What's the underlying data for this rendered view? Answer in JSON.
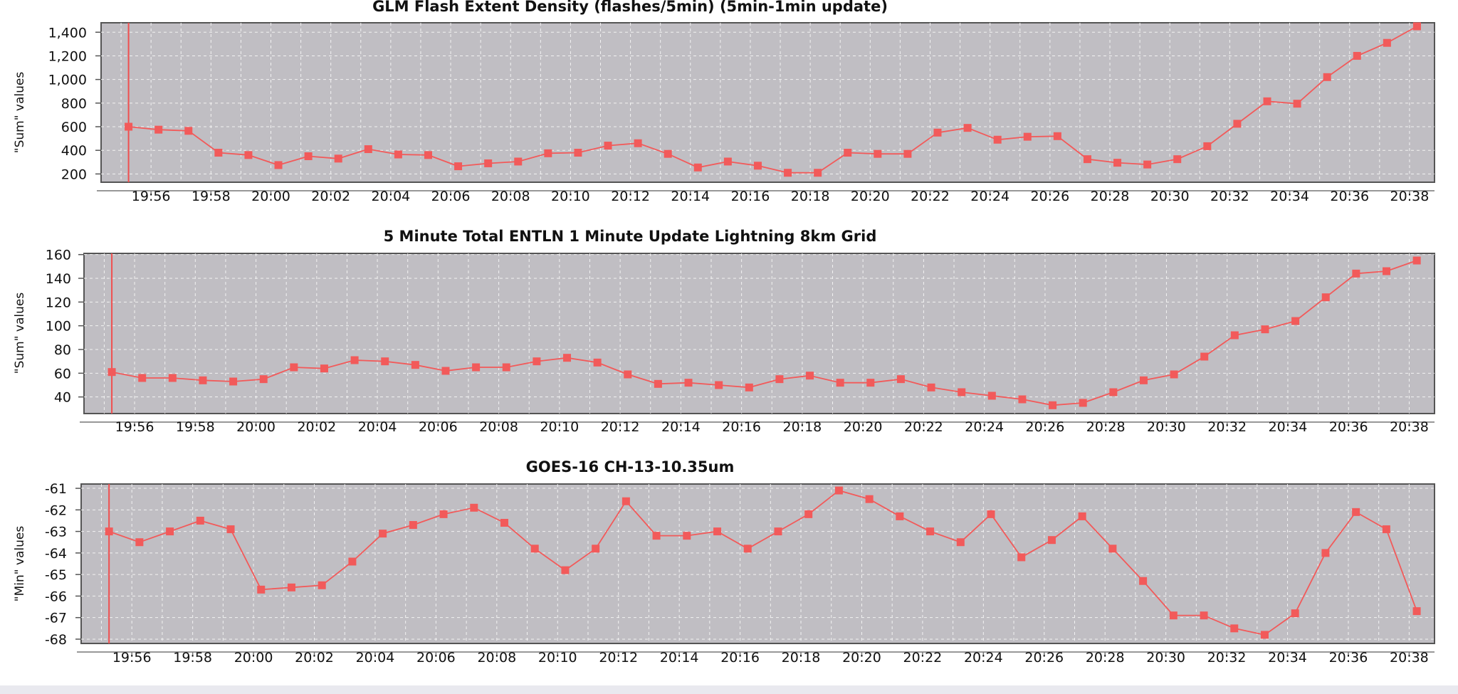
{
  "chart_data": [
    {
      "type": "line",
      "title": "GLM Flash Extent Density (flashes/5min) (5min-1min update)",
      "ylabel": "\"Sum\" values",
      "xlabel": "",
      "x_tick_labels": [
        "19:56",
        "19:58",
        "20:00",
        "20:02",
        "20:04",
        "20:06",
        "20:08",
        "20:10",
        "20:12",
        "20:14",
        "20:16",
        "20:18",
        "20:20",
        "20:22",
        "20:24",
        "20:26",
        "20:28",
        "20:30",
        "20:32",
        "20:34",
        "20:36",
        "20:38"
      ],
      "y_tick_labels": [
        "200",
        "400",
        "600",
        "800",
        "1,000",
        "1,200",
        "1,400"
      ],
      "ylim": [
        130,
        1480
      ],
      "xlim": [
        "19:54:20",
        "20:38:50"
      ],
      "grid": true,
      "cursor_x": "19:55:15",
      "series": [
        {
          "color": "#f25a5a",
          "x": [
            "19:55:15",
            "19:56:15",
            "19:57:15",
            "19:58:15",
            "19:59:15",
            "20:00:15",
            "20:01:15",
            "20:02:15",
            "20:03:15",
            "20:04:15",
            "20:05:15",
            "20:06:15",
            "20:07:15",
            "20:08:15",
            "20:09:15",
            "20:10:15",
            "20:11:15",
            "20:12:15",
            "20:13:15",
            "20:14:15",
            "20:15:15",
            "20:16:15",
            "20:17:15",
            "20:18:15",
            "20:19:15",
            "20:20:15",
            "20:21:15",
            "20:22:15",
            "20:23:15",
            "20:24:15",
            "20:25:15",
            "20:26:15",
            "20:27:15",
            "20:28:15",
            "20:29:15",
            "20:30:15",
            "20:31:15",
            "20:32:15",
            "20:33:15",
            "20:34:15",
            "20:35:15",
            "20:36:15",
            "20:37:15",
            "20:38:15"
          ],
          "values": [
            600,
            575,
            565,
            380,
            360,
            275,
            350,
            330,
            410,
            365,
            360,
            265,
            290,
            305,
            375,
            380,
            440,
            460,
            370,
            255,
            305,
            270,
            210,
            210,
            380,
            370,
            370,
            550,
            590,
            490,
            515,
            520,
            325,
            295,
            280,
            325,
            435,
            625,
            815,
            795,
            1020,
            1200,
            1310,
            1450
          ]
        }
      ]
    },
    {
      "type": "line",
      "title": "5 Minute Total ENTLN 1 Minute Update Lightning 8km Grid",
      "ylabel": "\"Sum\" values",
      "xlabel": "",
      "x_tick_labels": [
        "19:56",
        "19:58",
        "20:00",
        "20:02",
        "20:04",
        "20:06",
        "20:08",
        "20:10",
        "20:12",
        "20:14",
        "20:16",
        "20:18",
        "20:20",
        "20:22",
        "20:24",
        "20:26",
        "20:28",
        "20:30",
        "20:32",
        "20:34",
        "20:36",
        "20:38"
      ],
      "y_tick_labels": [
        "40",
        "60",
        "80",
        "100",
        "120",
        "140",
        "160"
      ],
      "ylim": [
        26,
        161
      ],
      "xlim": [
        "19:54:20",
        "20:38:50"
      ],
      "grid": true,
      "cursor_x": "19:55:15",
      "series": [
        {
          "color": "#f25a5a",
          "x": [
            "19:55:15",
            "19:56:15",
            "19:57:15",
            "19:58:15",
            "19:59:15",
            "20:00:15",
            "20:01:15",
            "20:02:15",
            "20:03:15",
            "20:04:15",
            "20:05:15",
            "20:06:15",
            "20:07:15",
            "20:08:15",
            "20:09:15",
            "20:10:15",
            "20:11:15",
            "20:12:15",
            "20:13:15",
            "20:14:15",
            "20:15:15",
            "20:16:15",
            "20:17:15",
            "20:18:15",
            "20:19:15",
            "20:20:15",
            "20:21:15",
            "20:22:15",
            "20:23:15",
            "20:24:15",
            "20:25:15",
            "20:26:15",
            "20:27:15",
            "20:28:15",
            "20:29:15",
            "20:30:15",
            "20:31:15",
            "20:32:15",
            "20:33:15",
            "20:34:15",
            "20:35:15",
            "20:36:15",
            "20:37:15",
            "20:38:15"
          ],
          "values": [
            61,
            56,
            56,
            54,
            53,
            55,
            65,
            64,
            71,
            70,
            67,
            62,
            65,
            65,
            70,
            73,
            69,
            59,
            51,
            52,
            50,
            48,
            55,
            58,
            52,
            52,
            55,
            48,
            44,
            41,
            38,
            33,
            35,
            44,
            54,
            59,
            74,
            92,
            97,
            104,
            124,
            144,
            146,
            155
          ]
        }
      ]
    },
    {
      "type": "line",
      "title": "GOES-16 CH-13-10.35um",
      "ylabel": "\"Min\" values",
      "xlabel": "",
      "x_tick_labels": [
        "19:56",
        "19:58",
        "20:00",
        "20:02",
        "20:04",
        "20:06",
        "20:08",
        "20:10",
        "20:12",
        "20:14",
        "20:16",
        "20:18",
        "20:20",
        "20:22",
        "20:24",
        "20:26",
        "20:28",
        "20:30",
        "20:32",
        "20:34",
        "20:36",
        "20:38"
      ],
      "y_tick_labels": [
        "-61",
        "-62",
        "-63",
        "-64",
        "-65",
        "-66",
        "-67",
        "-68"
      ],
      "ylim": [
        -68.2,
        -60.8
      ],
      "xlim": [
        "19:54:20",
        "20:38:50"
      ],
      "grid": true,
      "cursor_x": "19:55:15",
      "series": [
        {
          "color": "#f25a5a",
          "x": [
            "19:55:15",
            "19:56:15",
            "19:57:15",
            "19:58:15",
            "19:59:15",
            "20:00:15",
            "20:01:15",
            "20:02:15",
            "20:03:15",
            "20:04:15",
            "20:05:15",
            "20:06:15",
            "20:07:15",
            "20:08:15",
            "20:09:15",
            "20:10:15",
            "20:11:15",
            "20:12:15",
            "20:13:15",
            "20:14:15",
            "20:15:15",
            "20:16:15",
            "20:17:15",
            "20:18:15",
            "20:19:15",
            "20:20:15",
            "20:21:15",
            "20:22:15",
            "20:23:15",
            "20:24:15",
            "20:25:15",
            "20:26:15",
            "20:27:15",
            "20:28:15",
            "20:29:15",
            "20:30:15",
            "20:31:15",
            "20:32:15",
            "20:33:15",
            "20:34:15",
            "20:35:15",
            "20:36:15",
            "20:37:15",
            "20:38:15"
          ],
          "values": [
            -63.0,
            -63.5,
            -63.0,
            -62.5,
            -62.9,
            -65.7,
            -65.6,
            -65.5,
            -64.4,
            -63.1,
            -62.7,
            -62.2,
            -61.9,
            -62.6,
            -63.8,
            -64.8,
            -63.8,
            -61.6,
            -63.2,
            -63.2,
            -63.0,
            -63.8,
            -63.0,
            -62.2,
            -61.1,
            -61.5,
            -62.3,
            -63.0,
            -63.5,
            -62.2,
            -64.2,
            -63.4,
            -62.3,
            -63.8,
            -65.3,
            -66.9,
            -66.9,
            -67.5,
            -67.8,
            -66.8,
            -64.0,
            -62.1,
            -62.9,
            -66.7
          ]
        }
      ]
    }
  ]
}
